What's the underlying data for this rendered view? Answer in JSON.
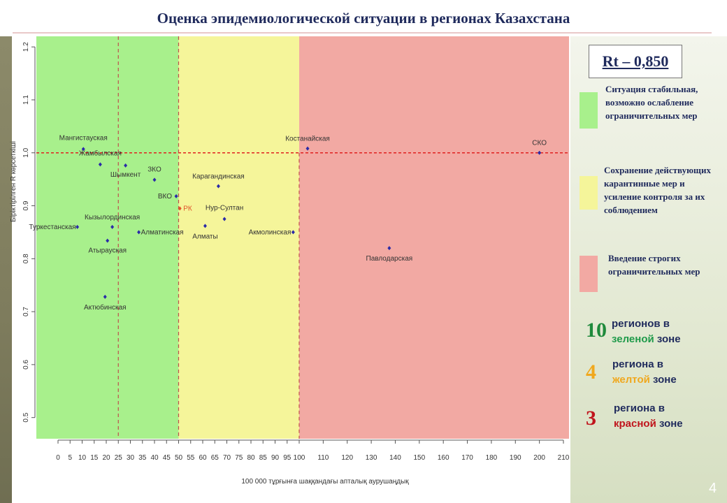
{
  "slide": {
    "title": "Оценка эпидемиологической ситуации в регионах Казахстана",
    "page_number": "4"
  },
  "rt_value": "Rt – 0,850",
  "legend": [
    {
      "color": "#a8f08c",
      "text": "Ситуация стабильная, возможно ослабление ограничительных мер"
    },
    {
      "color": "#f5f59a",
      "text": "Сохранение действующих карантинные мер и усиление контроля за их соблюдением"
    },
    {
      "color": "#f2a9a3",
      "text": "Введение строгих ограничительных мер"
    }
  ],
  "region_counts": [
    {
      "number": "10",
      "line1": "регионов в",
      "zone_word": "зеленой",
      "zone_suffix": " зоне",
      "number_color": "#1f8a3c",
      "zone_color": "#1f9a4a"
    },
    {
      "number": "4",
      "line1": "региона в",
      "zone_word": "желтой",
      "zone_suffix": " зоне",
      "number_color": "#f0a81e",
      "zone_color": "#f0a81e"
    },
    {
      "number": "3",
      "line1": "региона в",
      "zone_word": "красной",
      "zone_suffix": " зоне",
      "number_color": "#c0141c",
      "zone_color": "#c0141c"
    }
  ],
  "chart_data": {
    "type": "scatter",
    "xlabel": "100 000 тұрғынға шаққандағы апталық аурушаңдық",
    "ylabel": "Біріктірілген R көрсеткіші",
    "x_ticks": [
      0,
      5,
      10,
      15,
      20,
      25,
      30,
      35,
      40,
      45,
      50,
      55,
      60,
      65,
      70,
      75,
      80,
      85,
      90,
      95,
      100,
      110,
      120,
      130,
      140,
      150,
      160,
      170,
      180,
      190,
      200,
      210
    ],
    "y_ticks": [
      0.5,
      0.6,
      0.7,
      0.8,
      0.9,
      1.0,
      1.1,
      1.2
    ],
    "y_tick_labels": [
      "0.5",
      "0.6",
      "0.7",
      "0.8",
      "0.9",
      "1.0",
      "1.1",
      "1.2"
    ],
    "ylim": [
      0.46,
      1.22
    ],
    "zones": [
      {
        "from": 0,
        "to": 50,
        "color": "#a8f08c"
      },
      {
        "from": 50,
        "to": 100,
        "color": "#f5f59a"
      },
      {
        "from": 100,
        "to": 212,
        "color": "#f2a9a3"
      }
    ],
    "vertical_dashed_lines": [
      25,
      50
    ],
    "horizontal_dashed_line": 1.0,
    "points": [
      {
        "label": "Мангистауская",
        "x": 10.5,
        "y": 1.007,
        "color": "#2a2aa8"
      },
      {
        "label": "Жамбылская",
        "x": 17.5,
        "y": 0.978,
        "color": "#2a2aa8"
      },
      {
        "label": "Шымкент",
        "x": 28,
        "y": 0.976,
        "color": "#2a2aa8"
      },
      {
        "label": "ЗКО",
        "x": 40,
        "y": 0.949,
        "color": "#2a2aa8"
      },
      {
        "label": "ВКО",
        "x": 49,
        "y": 0.918,
        "color": "#2a2aa8"
      },
      {
        "label": "РК",
        "x": 50.5,
        "y": 0.895,
        "color": "#e0522a"
      },
      {
        "label": "Туркестанская",
        "x": 8,
        "y": 0.86,
        "color": "#2a2aa8"
      },
      {
        "label": "Кызылординская",
        "x": 22.5,
        "y": 0.86,
        "color": "#2a2aa8"
      },
      {
        "label": "Атырауская",
        "x": 20.5,
        "y": 0.834,
        "color": "#2a2aa8"
      },
      {
        "label": "Алматинская",
        "x": 33.5,
        "y": 0.85,
        "color": "#2a2aa8"
      },
      {
        "label": "Актюбинская",
        "x": 19.5,
        "y": 0.728,
        "color": "#2a2aa8"
      },
      {
        "label": "Карагандинская",
        "x": 66.5,
        "y": 0.937,
        "color": "#2a2aa8"
      },
      {
        "label": "Нур-Султан",
        "x": 69,
        "y": 0.875,
        "color": "#2a2aa8"
      },
      {
        "label": "Алматы",
        "x": 61,
        "y": 0.862,
        "color": "#2a2aa8"
      },
      {
        "label": "Акмолинская",
        "x": 97.5,
        "y": 0.85,
        "color": "#2a2aa8"
      },
      {
        "label": "Костанайская",
        "x": 103.5,
        "y": 1.008,
        "color": "#2a2aa8"
      },
      {
        "label": "Павлодарская",
        "x": 137.5,
        "y": 0.82,
        "color": "#2a2aa8"
      },
      {
        "label": "СКО",
        "x": 200,
        "y": 1.0,
        "color": "#2a2aa8"
      }
    ]
  }
}
